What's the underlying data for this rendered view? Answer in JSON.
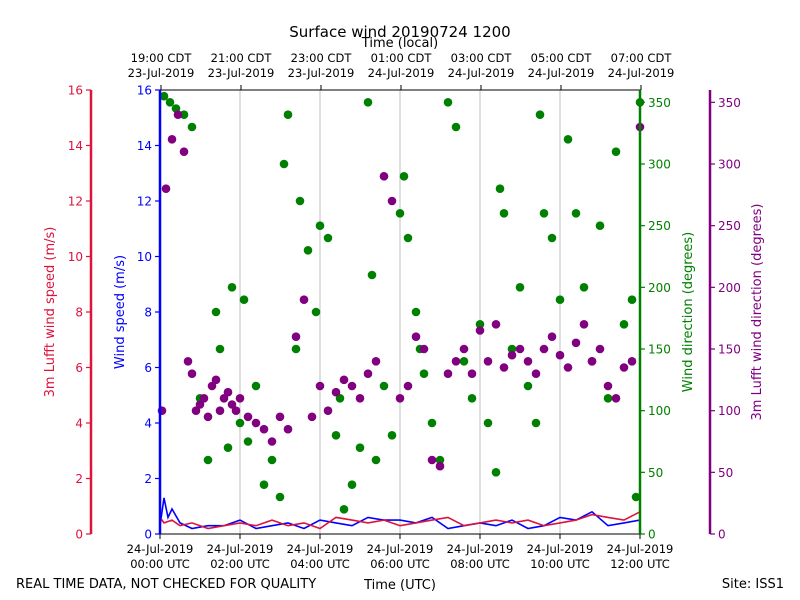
{
  "chart_data": {
    "type": "scatter",
    "title": "Surface wind 20190724 1200",
    "top_axis_label": "Time (local)",
    "top_ticks": [
      {
        "time": "19:00 CDT",
        "date": "23-Jul-2019"
      },
      {
        "time": "21:00 CDT",
        "date": "23-Jul-2019"
      },
      {
        "time": "23:00 CDT",
        "date": "23-Jul-2019"
      },
      {
        "time": "01:00 CDT",
        "date": "24-Jul-2019"
      },
      {
        "time": "03:00 CDT",
        "date": "24-Jul-2019"
      },
      {
        "time": "05:00 CDT",
        "date": "24-Jul-2019"
      },
      {
        "time": "07:00 CDT",
        "date": "24-Jul-2019"
      }
    ],
    "xlabel": "Time (UTC)",
    "bottom_ticks": [
      {
        "date": "24-Jul-2019",
        "time": "00:00 UTC"
      },
      {
        "date": "24-Jul-2019",
        "time": "02:00 UTC"
      },
      {
        "date": "24-Jul-2019",
        "time": "04:00 UTC"
      },
      {
        "date": "24-Jul-2019",
        "time": "06:00 UTC"
      },
      {
        "date": "24-Jul-2019",
        "time": "08:00 UTC"
      },
      {
        "date": "24-Jul-2019",
        "time": "10:00 UTC"
      },
      {
        "date": "24-Jul-2019",
        "time": "12:00 UTC"
      }
    ],
    "xlim_hours": [
      0,
      12
    ],
    "axes": {
      "lufft_speed": {
        "label": "3m Lufft wind speed (m/s)",
        "ylim": [
          0,
          16
        ],
        "ticks": [
          0,
          2,
          4,
          6,
          8,
          10,
          12,
          14,
          16
        ],
        "color": "#dc143c"
      },
      "wind_speed": {
        "label": "Wind speed (m/s)",
        "ylim": [
          0,
          16
        ],
        "ticks": [
          0,
          2,
          4,
          6,
          8,
          10,
          12,
          14,
          16
        ],
        "color": "#0000ff"
      },
      "wind_dir": {
        "label": "Wind direction (degrees)",
        "ylim": [
          0,
          360
        ],
        "ticks": [
          0,
          50,
          100,
          150,
          200,
          250,
          300,
          350
        ],
        "color": "#008000"
      },
      "lufft_dir": {
        "label": "3m Lufft wind direction (degrees)",
        "ylim": [
          0,
          360
        ],
        "ticks": [
          0,
          50,
          100,
          150,
          200,
          250,
          300,
          350
        ],
        "color": "#800080"
      }
    },
    "series": [
      {
        "name": "Wind speed",
        "kind": "line",
        "axis": "wind_speed",
        "color": "#0000ff",
        "x": [
          0,
          0.1,
          0.2,
          0.3,
          0.5,
          0.8,
          1.2,
          1.6,
          2,
          2.4,
          2.8,
          3.2,
          3.6,
          4,
          4.4,
          4.8,
          5.2,
          5.6,
          6,
          6.4,
          6.8,
          7.2,
          7.6,
          8,
          8.4,
          8.8,
          9.2,
          9.6,
          10,
          10.4,
          10.8,
          11.2,
          11.6,
          12
        ],
        "y": [
          0.3,
          1.3,
          0.6,
          0.9,
          0.4,
          0.2,
          0.3,
          0.3,
          0.5,
          0.2,
          0.3,
          0.4,
          0.2,
          0.5,
          0.4,
          0.3,
          0.6,
          0.5,
          0.5,
          0.4,
          0.6,
          0.2,
          0.3,
          0.4,
          0.3,
          0.5,
          0.2,
          0.3,
          0.6,
          0.5,
          0.8,
          0.3,
          0.4,
          0.5
        ]
      },
      {
        "name": "3m Lufft wind speed",
        "kind": "line",
        "axis": "lufft_speed",
        "color": "#dc143c",
        "x": [
          0,
          0.1,
          0.3,
          0.5,
          0.8,
          1.2,
          1.6,
          2,
          2.4,
          2.8,
          3.2,
          3.6,
          4,
          4.4,
          4.8,
          5.2,
          5.6,
          6,
          6.4,
          6.8,
          7.2,
          7.6,
          8,
          8.4,
          8.8,
          9.2,
          9.6,
          10,
          10.4,
          10.8,
          11.2,
          11.6,
          12
        ],
        "y": [
          0.6,
          0.4,
          0.5,
          0.3,
          0.4,
          0.2,
          0.3,
          0.4,
          0.3,
          0.5,
          0.3,
          0.4,
          0.2,
          0.6,
          0.5,
          0.4,
          0.5,
          0.3,
          0.4,
          0.5,
          0.6,
          0.3,
          0.4,
          0.5,
          0.4,
          0.5,
          0.3,
          0.4,
          0.5,
          0.7,
          0.6,
          0.5,
          0.8
        ]
      },
      {
        "name": "Wind direction",
        "kind": "scatter",
        "axis": "wind_dir",
        "color": "#008000",
        "x": [
          0.1,
          0.25,
          0.4,
          0.6,
          0.8,
          1.0,
          1.2,
          1.4,
          1.5,
          1.7,
          1.8,
          2.0,
          2.1,
          2.2,
          2.4,
          2.6,
          2.8,
          3.0,
          3.1,
          3.2,
          3.4,
          3.5,
          3.7,
          3.9,
          4.0,
          4.2,
          4.4,
          4.5,
          4.6,
          4.8,
          5.0,
          5.2,
          5.3,
          5.4,
          5.6,
          5.8,
          6.0,
          6.1,
          6.2,
          6.4,
          6.5,
          6.6,
          6.8,
          7.0,
          7.2,
          7.4,
          7.6,
          7.8,
          8.0,
          8.2,
          8.4,
          8.5,
          8.6,
          8.8,
          9.0,
          9.2,
          9.4,
          9.5,
          9.6,
          9.8,
          10.0,
          10.2,
          10.4,
          10.6,
          10.8,
          11.0,
          11.2,
          11.4,
          11.6,
          11.8,
          11.9,
          12.0
        ],
        "y": [
          355,
          350,
          345,
          340,
          330,
          110,
          60,
          180,
          150,
          70,
          200,
          90,
          190,
          75,
          120,
          40,
          60,
          30,
          300,
          340,
          150,
          270,
          230,
          180,
          250,
          240,
          80,
          110,
          20,
          40,
          70,
          350,
          210,
          60,
          120,
          80,
          260,
          290,
          240,
          180,
          150,
          130,
          90,
          60,
          350,
          330,
          140,
          110,
          170,
          90,
          50,
          280,
          260,
          150,
          200,
          120,
          90,
          340,
          260,
          240,
          190,
          320,
          260,
          200,
          140,
          250,
          110,
          310,
          170,
          190,
          30,
          350
        ]
      },
      {
        "name": "3m Lufft wind direction",
        "kind": "scatter",
        "axis": "lufft_dir",
        "color": "#800080",
        "x": [
          0.05,
          0.15,
          0.3,
          0.45,
          0.6,
          0.7,
          0.8,
          0.9,
          1.0,
          1.1,
          1.2,
          1.3,
          1.4,
          1.5,
          1.6,
          1.7,
          1.8,
          1.9,
          2.0,
          2.2,
          2.4,
          2.6,
          2.8,
          3.0,
          3.2,
          3.4,
          3.6,
          3.8,
          4.0,
          4.2,
          4.4,
          4.6,
          4.8,
          5.0,
          5.2,
          5.4,
          5.6,
          5.8,
          6.0,
          6.2,
          6.4,
          6.6,
          6.8,
          7.0,
          7.2,
          7.4,
          7.6,
          7.8,
          8.0,
          8.2,
          8.4,
          8.6,
          8.8,
          9.0,
          9.2,
          9.4,
          9.6,
          9.8,
          10.0,
          10.2,
          10.4,
          10.6,
          10.8,
          11.0,
          11.2,
          11.4,
          11.6,
          11.8,
          12.0
        ],
        "y": [
          100,
          280,
          320,
          340,
          310,
          140,
          130,
          100,
          105,
          110,
          95,
          120,
          125,
          100,
          110,
          115,
          105,
          100,
          110,
          95,
          90,
          85,
          75,
          95,
          85,
          160,
          190,
          95,
          120,
          100,
          115,
          125,
          120,
          110,
          130,
          140,
          290,
          270,
          110,
          120,
          160,
          150,
          60,
          55,
          130,
          140,
          150,
          130,
          165,
          140,
          170,
          135,
          145,
          150,
          140,
          130,
          150,
          160,
          145,
          135,
          155,
          170,
          140,
          150,
          120,
          110,
          135,
          140,
          330
        ]
      }
    ]
  },
  "footer": {
    "disclaimer": "REAL TIME DATA, NOT CHECKED FOR QUALITY",
    "site": "Site: ISS1"
  }
}
